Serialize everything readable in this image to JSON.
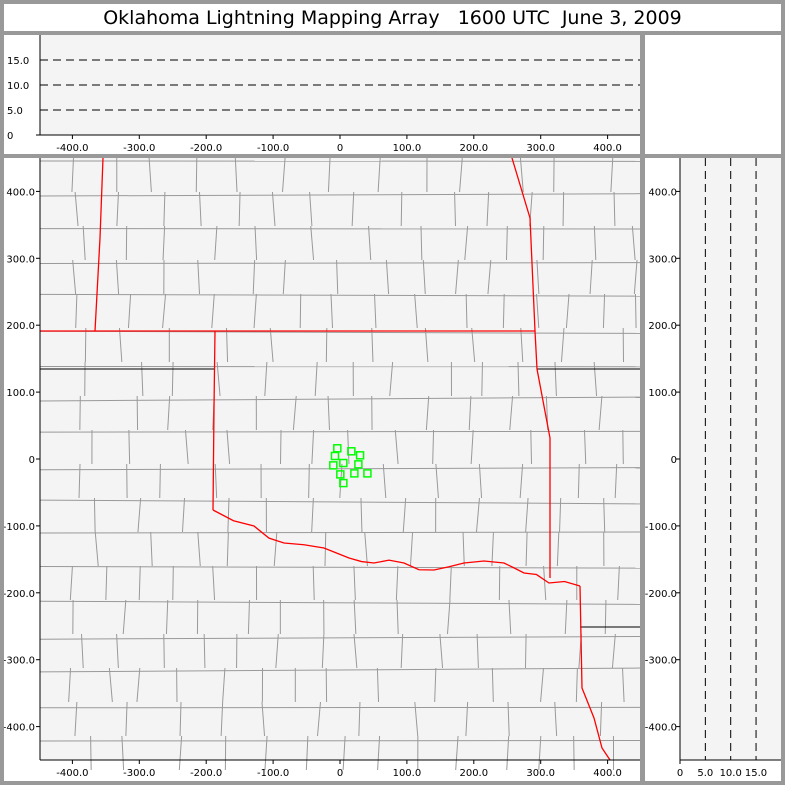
{
  "title": "Oklahoma Lightning Mapping Array   1600 UTC  June 3, 2009",
  "colors": {
    "background": "#f4f4f4",
    "state_border": "#ff0000",
    "county_border": "#999999",
    "source_marker": "#00ff00",
    "frame": "#999999"
  },
  "chart_data": [
    {
      "type": "line",
      "panel": "altitude vs east-west (top)",
      "xlim": [
        -450,
        450
      ],
      "ylim": [
        0,
        20
      ],
      "x_ticks": [
        "-400.0",
        "-300.0",
        "-200.0",
        "-100.0",
        "0",
        "100.0",
        "200.0",
        "300.0",
        "400.0"
      ],
      "x_tick_values": [
        -400,
        -300,
        -200,
        -100,
        0,
        100,
        200,
        300,
        400
      ],
      "y_ticks": [
        "0",
        "5.0",
        "10.0",
        "15.0"
      ],
      "y_tick_values": [
        0,
        5,
        10,
        15
      ],
      "grid": "dashed horizontal at 5, 10, 15",
      "series": []
    },
    {
      "type": "scatter",
      "panel": "plan view map",
      "xlim": [
        -450,
        450
      ],
      "ylim": [
        -450,
        450
      ],
      "x_ticks": [
        "-400.0",
        "-300.0",
        "-200.0",
        "-100.0",
        "0",
        "100.0",
        "200.0",
        "300.0",
        "400.0"
      ],
      "x_tick_values": [
        -400,
        -300,
        -200,
        -100,
        0,
        100,
        200,
        300,
        400
      ],
      "y_ticks": [
        "400.0",
        "300.0",
        "200.0",
        "100.0",
        "0",
        "-100.0",
        "-200.0",
        "-300.0",
        "-400.0"
      ],
      "y_tick_values": [
        400,
        300,
        200,
        100,
        0,
        -100,
        -200,
        -300,
        -400
      ],
      "marker": "hollow-square",
      "series": [
        {
          "x": [
            -4,
            17,
            30,
            -7.5,
            5,
            27.5,
            -10,
            0.5,
            21.5,
            41,
            5
          ],
          "y": [
            16,
            11.5,
            5.5,
            4.5,
            -6,
            -8,
            -9.5,
            -23,
            -21.5,
            -21.5,
            -36
          ]
        }
      ]
    },
    {
      "type": "line",
      "panel": "north-south vs altitude (right)",
      "xlim": [
        0,
        20
      ],
      "ylim": [
        -450,
        450
      ],
      "x_ticks": [
        "0",
        "5.0",
        "10.0",
        "15.0"
      ],
      "x_tick_values": [
        0,
        5,
        10,
        15
      ],
      "y_ticks": [
        "400.0",
        "300.0",
        "200.0",
        "100.0",
        "0",
        "-100.0",
        "-200.0",
        "-300.0",
        "-400.0"
      ],
      "y_tick_values": [
        400,
        300,
        200,
        100,
        0,
        -100,
        -200,
        -300,
        -400
      ],
      "grid": "dashed vertical at 5, 10, 15",
      "series": []
    }
  ]
}
